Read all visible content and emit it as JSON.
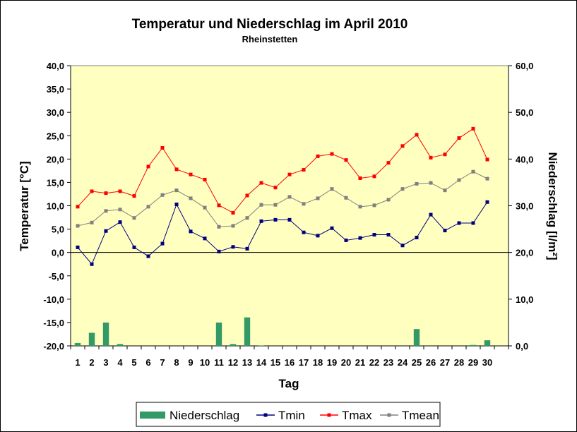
{
  "chart_data": {
    "type": "bar+line",
    "title": "Temperatur und Niederschlag im April 2010",
    "subtitle": "Rheinstetten",
    "xlabel": "Tag",
    "ylabel_left": "Temperatur [°C]",
    "ylabel_right": "Niederschlag [l/m²]",
    "ylim_left": [
      -20,
      40
    ],
    "ylim_right": [
      0,
      60
    ],
    "yticks_left": [
      "40,0",
      "35,0",
      "30,0",
      "25,0",
      "20,0",
      "15,0",
      "10,0",
      "5,0",
      "0,0",
      "-5,0",
      "-10,0",
      "-15,0",
      "-20,0"
    ],
    "yticks_right": [
      "60,0",
      "50,0",
      "40,0",
      "30,0",
      "20,0",
      "10,0",
      "0,0"
    ],
    "categories": [
      "1",
      "2",
      "3",
      "4",
      "5",
      "6",
      "7",
      "8",
      "9",
      "10",
      "11",
      "12",
      "13",
      "14",
      "15",
      "16",
      "17",
      "18",
      "19",
      "20",
      "21",
      "22",
      "23",
      "24",
      "25",
      "26",
      "27",
      "28",
      "29",
      "30"
    ],
    "series": [
      {
        "name": "Niederschlag",
        "type": "bar",
        "axis": "right",
        "color": "#339966",
        "values": [
          0.6,
          2.8,
          5.0,
          0.4,
          0,
          0,
          0,
          0,
          0,
          0,
          5.0,
          0.4,
          6.1,
          0.1,
          0,
          0,
          0,
          0,
          0,
          0,
          0,
          0,
          0,
          0,
          3.6,
          0,
          0,
          0,
          0.2,
          1.2
        ]
      },
      {
        "name": "Tmin",
        "type": "line",
        "axis": "left",
        "color": "#000080",
        "values": [
          1.1,
          -2.5,
          4.6,
          6.5,
          1.1,
          -0.8,
          1.9,
          10.3,
          4.5,
          3.0,
          0.2,
          1.2,
          0.8,
          6.7,
          7.0,
          7.0,
          4.3,
          3.6,
          5.2,
          2.6,
          3.1,
          3.8,
          3.8,
          1.5,
          3.2,
          8.1,
          4.7,
          6.3,
          6.3,
          10.8
        ]
      },
      {
        "name": "Tmax",
        "type": "line",
        "axis": "left",
        "color": "#ff0000",
        "values": [
          9.8,
          13.1,
          12.7,
          13.1,
          12.1,
          18.4,
          22.4,
          17.8,
          16.7,
          15.6,
          10.1,
          8.5,
          12.2,
          14.9,
          13.9,
          16.7,
          17.7,
          20.6,
          21.1,
          19.8,
          15.9,
          16.3,
          19.2,
          22.8,
          25.2,
          20.3,
          21.0,
          24.5,
          26.5,
          19.9
        ]
      },
      {
        "name": "Tmean",
        "type": "line",
        "axis": "left",
        "color": "#808080",
        "values": [
          5.7,
          6.4,
          8.9,
          9.2,
          7.4,
          9.8,
          12.3,
          13.3,
          11.6,
          9.6,
          5.5,
          5.7,
          7.4,
          10.2,
          10.2,
          11.9,
          10.4,
          11.6,
          13.6,
          11.7,
          9.8,
          10.1,
          11.3,
          13.6,
          14.7,
          14.9,
          13.3,
          15.5,
          17.3,
          15.8
        ]
      }
    ],
    "grid": false,
    "legend_position": "bottom",
    "plot_background": "#ffffc0",
    "outer_background": "#ffffff"
  }
}
